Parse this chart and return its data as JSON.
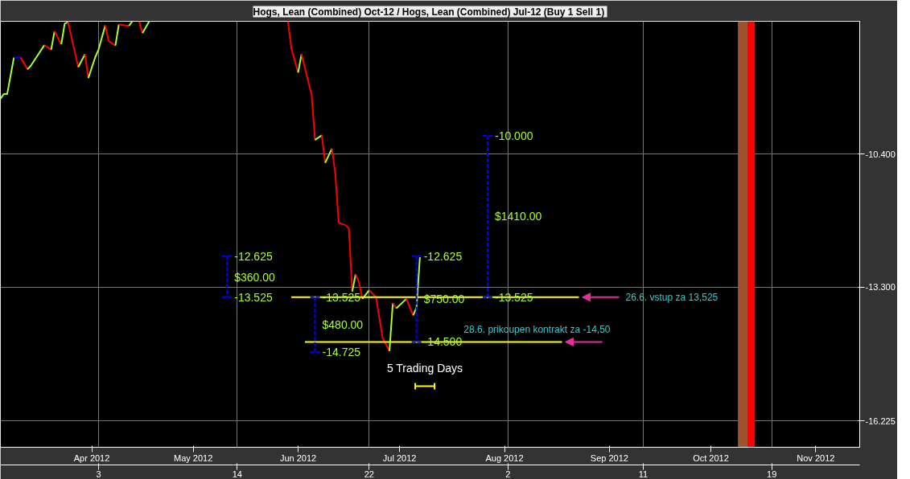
{
  "chart_data": {
    "type": "line",
    "title": "Hogs, Lean (Combined) Oct-12  / Hogs, Lean (Combined) Jul-12 (Buy 1 Sell 1)",
    "xlim": [
      "2012-03-05",
      "2012-11-14"
    ],
    "ylim": [
      -16.8,
      -7.5
    ],
    "xticks": [
      {
        "value": "2012-04-01",
        "label": "Apr 2012"
      },
      {
        "value": "2012-05-01",
        "label": "May 2012"
      },
      {
        "value": "2012-06-01",
        "label": "Jun 2012"
      },
      {
        "value": "2012-07-01",
        "label": "Jul 2012"
      },
      {
        "value": "2012-08-01",
        "label": "Aug 2012"
      },
      {
        "value": "2012-09-01",
        "label": "Sep 2012"
      },
      {
        "value": "2012-10-01",
        "label": "Oct 2012"
      },
      {
        "value": "2012-11-01",
        "label": "Nov 2012"
      }
    ],
    "x2lim": [
      "2012-03-05",
      "2012-11-14"
    ],
    "x2ticks": [
      {
        "value": "2012-04-03",
        "label": "3"
      },
      {
        "value": "2012-05-14",
        "label": "14"
      },
      {
        "value": "2012-06-22",
        "label": "22"
      },
      {
        "value": "2012-08-02",
        "label": "2"
      },
      {
        "value": "2012-09-11",
        "label": "11"
      },
      {
        "value": "2012-10-19",
        "label": "19"
      }
    ],
    "yticks": [
      {
        "value": -10.4,
        "label": "-10.400"
      },
      {
        "value": -13.3,
        "label": "-13.300"
      },
      {
        "value": -16.225,
        "label": "-16.225"
      }
    ],
    "grid": true,
    "series": [
      {
        "x": [
          "2012-03-05",
          "2012-03-06",
          "2012-03-07",
          "2012-03-09"
        ],
        "values": [
          -9.19,
          -9.09,
          -9.09,
          -8.29
        ],
        "color": "#a6ff33"
      },
      {
        "x": [
          "2012-03-09",
          "2012-03-11"
        ],
        "values": [
          -8.29,
          -8.29
        ],
        "color": "#0000ff"
      },
      {
        "x": [
          "2012-03-11",
          "2012-03-13"
        ],
        "values": [
          -8.29,
          -8.55
        ],
        "color": "#ff0000"
      },
      {
        "x": [
          "2012-03-13",
          "2012-03-14",
          "2012-03-18"
        ],
        "values": [
          -8.55,
          -8.47,
          -8.02
        ],
        "color": "#a6ff33"
      },
      {
        "x": [
          "2012-03-18",
          "2012-03-20"
        ],
        "values": [
          -8.02,
          -8.12
        ],
        "color": "#ff0000"
      },
      {
        "x": [
          "2012-03-20",
          "2012-03-21"
        ],
        "values": [
          -8.12,
          -7.72
        ],
        "color": "#a6ff33"
      },
      {
        "x": [
          "2012-03-21",
          "2012-03-23"
        ],
        "values": [
          -7.72,
          -8.0
        ],
        "color": "#ff0000"
      },
      {
        "x": [
          "2012-03-23",
          "2012-03-24",
          "2012-03-25"
        ],
        "values": [
          -8.0,
          -7.55,
          -7.52
        ],
        "color": "#a6ff33"
      },
      {
        "x": [
          "2012-03-25",
          "2012-03-28"
        ],
        "values": [
          -7.52,
          -8.5
        ],
        "color": "#ff0000"
      },
      {
        "x": [
          "2012-03-28",
          "2012-03-30"
        ],
        "values": [
          -8.5,
          -8.22
        ],
        "color": "#a6ff33"
      },
      {
        "x": [
          "2012-03-30",
          "2012-03-31"
        ],
        "values": [
          -8.22,
          -8.74
        ],
        "color": "#ff0000"
      },
      {
        "x": [
          "2012-03-31",
          "2012-04-02",
          "2012-04-03",
          "2012-04-05"
        ],
        "values": [
          -8.74,
          -8.29,
          -8.12,
          -7.59
        ],
        "color": "#a6ff33"
      },
      {
        "x": [
          "2012-04-05",
          "2012-04-06",
          "2012-04-08"
        ],
        "values": [
          -7.59,
          -7.93,
          -8.03
        ],
        "color": "#ff0000"
      },
      {
        "x": [
          "2012-04-08",
          "2012-04-09"
        ],
        "values": [
          -8.03,
          -7.57
        ],
        "color": "#a6ff33"
      },
      {
        "x": [
          "2012-04-09",
          "2012-04-12"
        ],
        "values": [
          -7.57,
          -7.6
        ],
        "color": "#ff0000"
      },
      {
        "x": [
          "2012-04-12",
          "2012-04-13"
        ],
        "values": [
          -7.6,
          -7.5
        ],
        "color": "#a6ff33"
      },
      {
        "x": [
          "2012-04-15",
          "2012-04-16"
        ],
        "values": [
          -7.5,
          -7.76
        ],
        "color": "#ff0000"
      },
      {
        "x": [
          "2012-04-16",
          "2012-04-18"
        ],
        "values": [
          -7.76,
          -7.5
        ],
        "color": "#a6ff33"
      },
      {
        "x": [
          "2012-05-29",
          "2012-05-30",
          "2012-06-01"
        ],
        "values": [
          -7.5,
          -8.09,
          -8.62
        ],
        "color": "#ff0000"
      },
      {
        "x": [
          "2012-06-01",
          "2012-06-02"
        ],
        "values": [
          -8.62,
          -8.22
        ],
        "color": "#a6ff33"
      },
      {
        "x": [
          "2012-06-02",
          "2012-06-05",
          "2012-06-06"
        ],
        "values": [
          -8.22,
          -9.11,
          -10.09
        ],
        "color": "#ff0000"
      },
      {
        "x": [
          "2012-06-06",
          "2012-06-08"
        ],
        "values": [
          -10.09,
          -9.99
        ],
        "color": "#a6ff33"
      },
      {
        "x": [
          "2012-06-08",
          "2012-06-09"
        ],
        "values": [
          -9.99,
          -10.59
        ],
        "color": "#ff0000"
      },
      {
        "x": [
          "2012-06-09",
          "2012-06-11"
        ],
        "values": [
          -10.59,
          -10.28
        ],
        "color": "#a6ff33"
      },
      {
        "x": [
          "2012-06-11",
          "2012-06-12",
          "2012-06-13",
          "2012-06-15",
          "2012-06-16",
          "2012-06-17"
        ],
        "values": [
          -10.28,
          -10.83,
          -11.9,
          -11.95,
          -12.02,
          -13.4
        ],
        "color": "#ff0000"
      },
      {
        "x": [
          "2012-06-17",
          "2012-06-18"
        ],
        "values": [
          -13.4,
          -13.02
        ],
        "color": "#a6ff33"
      },
      {
        "x": [
          "2012-06-18",
          "2012-06-19",
          "2012-06-20"
        ],
        "values": [
          -13.02,
          -13.2,
          -13.56
        ],
        "color": "#ff0000"
      },
      {
        "x": [
          "2012-06-20",
          "2012-06-22"
        ],
        "values": [
          -13.56,
          -13.37
        ],
        "color": "#a6ff33"
      },
      {
        "x": [
          "2012-06-22",
          "2012-06-24",
          "2012-06-26",
          "2012-06-28"
        ],
        "values": [
          -13.37,
          -13.52,
          -14.42,
          -14.7
        ],
        "color": "#ff0000"
      },
      {
        "x": [
          "2012-06-28",
          "2012-06-29"
        ],
        "values": [
          -14.7,
          -13.65
        ],
        "color": "#a6ff33"
      },
      {
        "x": [
          "2012-06-29",
          "2012-06-30"
        ],
        "values": [
          -13.65,
          -13.77
        ],
        "color": "#ff0000"
      },
      {
        "x": [
          "2012-06-30",
          "2012-07-03"
        ],
        "values": [
          -13.77,
          -13.56
        ],
        "color": "#a6ff33"
      },
      {
        "x": [
          "2012-07-03",
          "2012-07-05"
        ],
        "values": [
          -13.56,
          -13.92
        ],
        "color": "#ff0000"
      },
      {
        "x": [
          "2012-07-05",
          "2012-07-06",
          "2012-07-07"
        ],
        "values": [
          -13.92,
          -13.75,
          -12.65
        ],
        "color": "#a6ff33"
      },
      {
        "x": [
          "2012-05-30",
          "2012-08-23"
        ],
        "values": [
          -13.525,
          -13.525
        ],
        "color": "#ffff00"
      },
      {
        "x": [
          "2012-06-03",
          "2012-08-18"
        ],
        "values": [
          -14.5,
          -14.5
        ],
        "color": "#ffff00"
      },
      {
        "x": [
          "2012-05-11",
          "2012-05-11"
        ],
        "values": [
          -12.625,
          -13.525
        ],
        "color": "#0000ff",
        "line_style": "dashed"
      },
      {
        "x": [
          "2012-06-06",
          "2012-06-06"
        ],
        "values": [
          -13.525,
          -14.725
        ],
        "color": "#0000ff",
        "line_style": "dashed"
      },
      {
        "x": [
          "2012-07-06",
          "2012-07-06"
        ],
        "values": [
          -12.625,
          -14.5
        ],
        "color": "#0000ff",
        "line_style": "dashed"
      },
      {
        "x": [
          "2012-07-27",
          "2012-07-27"
        ],
        "values": [
          -10.0,
          -13.525
        ],
        "color": "#0000ff",
        "line_style": "dashed"
      }
    ],
    "bands": [
      {
        "axis": "x",
        "from": "2012-10-09",
        "to": "2012-10-12",
        "color": "#a0522d"
      },
      {
        "axis": "x",
        "from": "2012-10-12",
        "to": "2012-10-14",
        "color": "#ff0000"
      }
    ],
    "annotations": [
      {
        "text": "-12.625",
        "x": "2012-05-11",
        "y": -12.625
      },
      {
        "text": "$360.00",
        "x": "2012-05-11",
        "y": -13.08
      },
      {
        "text": "-13.525",
        "x": "2012-05-11",
        "y": -13.525
      },
      {
        "text": "-13.525",
        "x": "2012-06-06",
        "y": -13.525
      },
      {
        "text": "$480.00",
        "x": "2012-06-06",
        "y": -14.13
      },
      {
        "text": "-14.725",
        "x": "2012-06-06",
        "y": -14.725
      },
      {
        "text": "-12.625",
        "x": "2012-07-06",
        "y": -12.625
      },
      {
        "text": "$750.00",
        "x": "2012-07-06",
        "y": -13.56
      },
      {
        "text": "-14.500",
        "x": "2012-07-06",
        "y": -14.5
      },
      {
        "text": "-10.000",
        "x": "2012-07-27",
        "y": -10.0
      },
      {
        "text": "$1410.00",
        "x": "2012-07-27",
        "y": -11.76
      },
      {
        "text": "-13.525",
        "x": "2012-07-27",
        "y": -13.525
      },
      {
        "text": "26.6. vstup za 13,525",
        "x": "2012-08-23",
        "y": -13.525
      },
      {
        "text": "28.6. prikoupen kontrakt za -14,50",
        "x": "2012-08-18",
        "y": -14.5
      },
      "5 Trading Days"
    ]
  }
}
